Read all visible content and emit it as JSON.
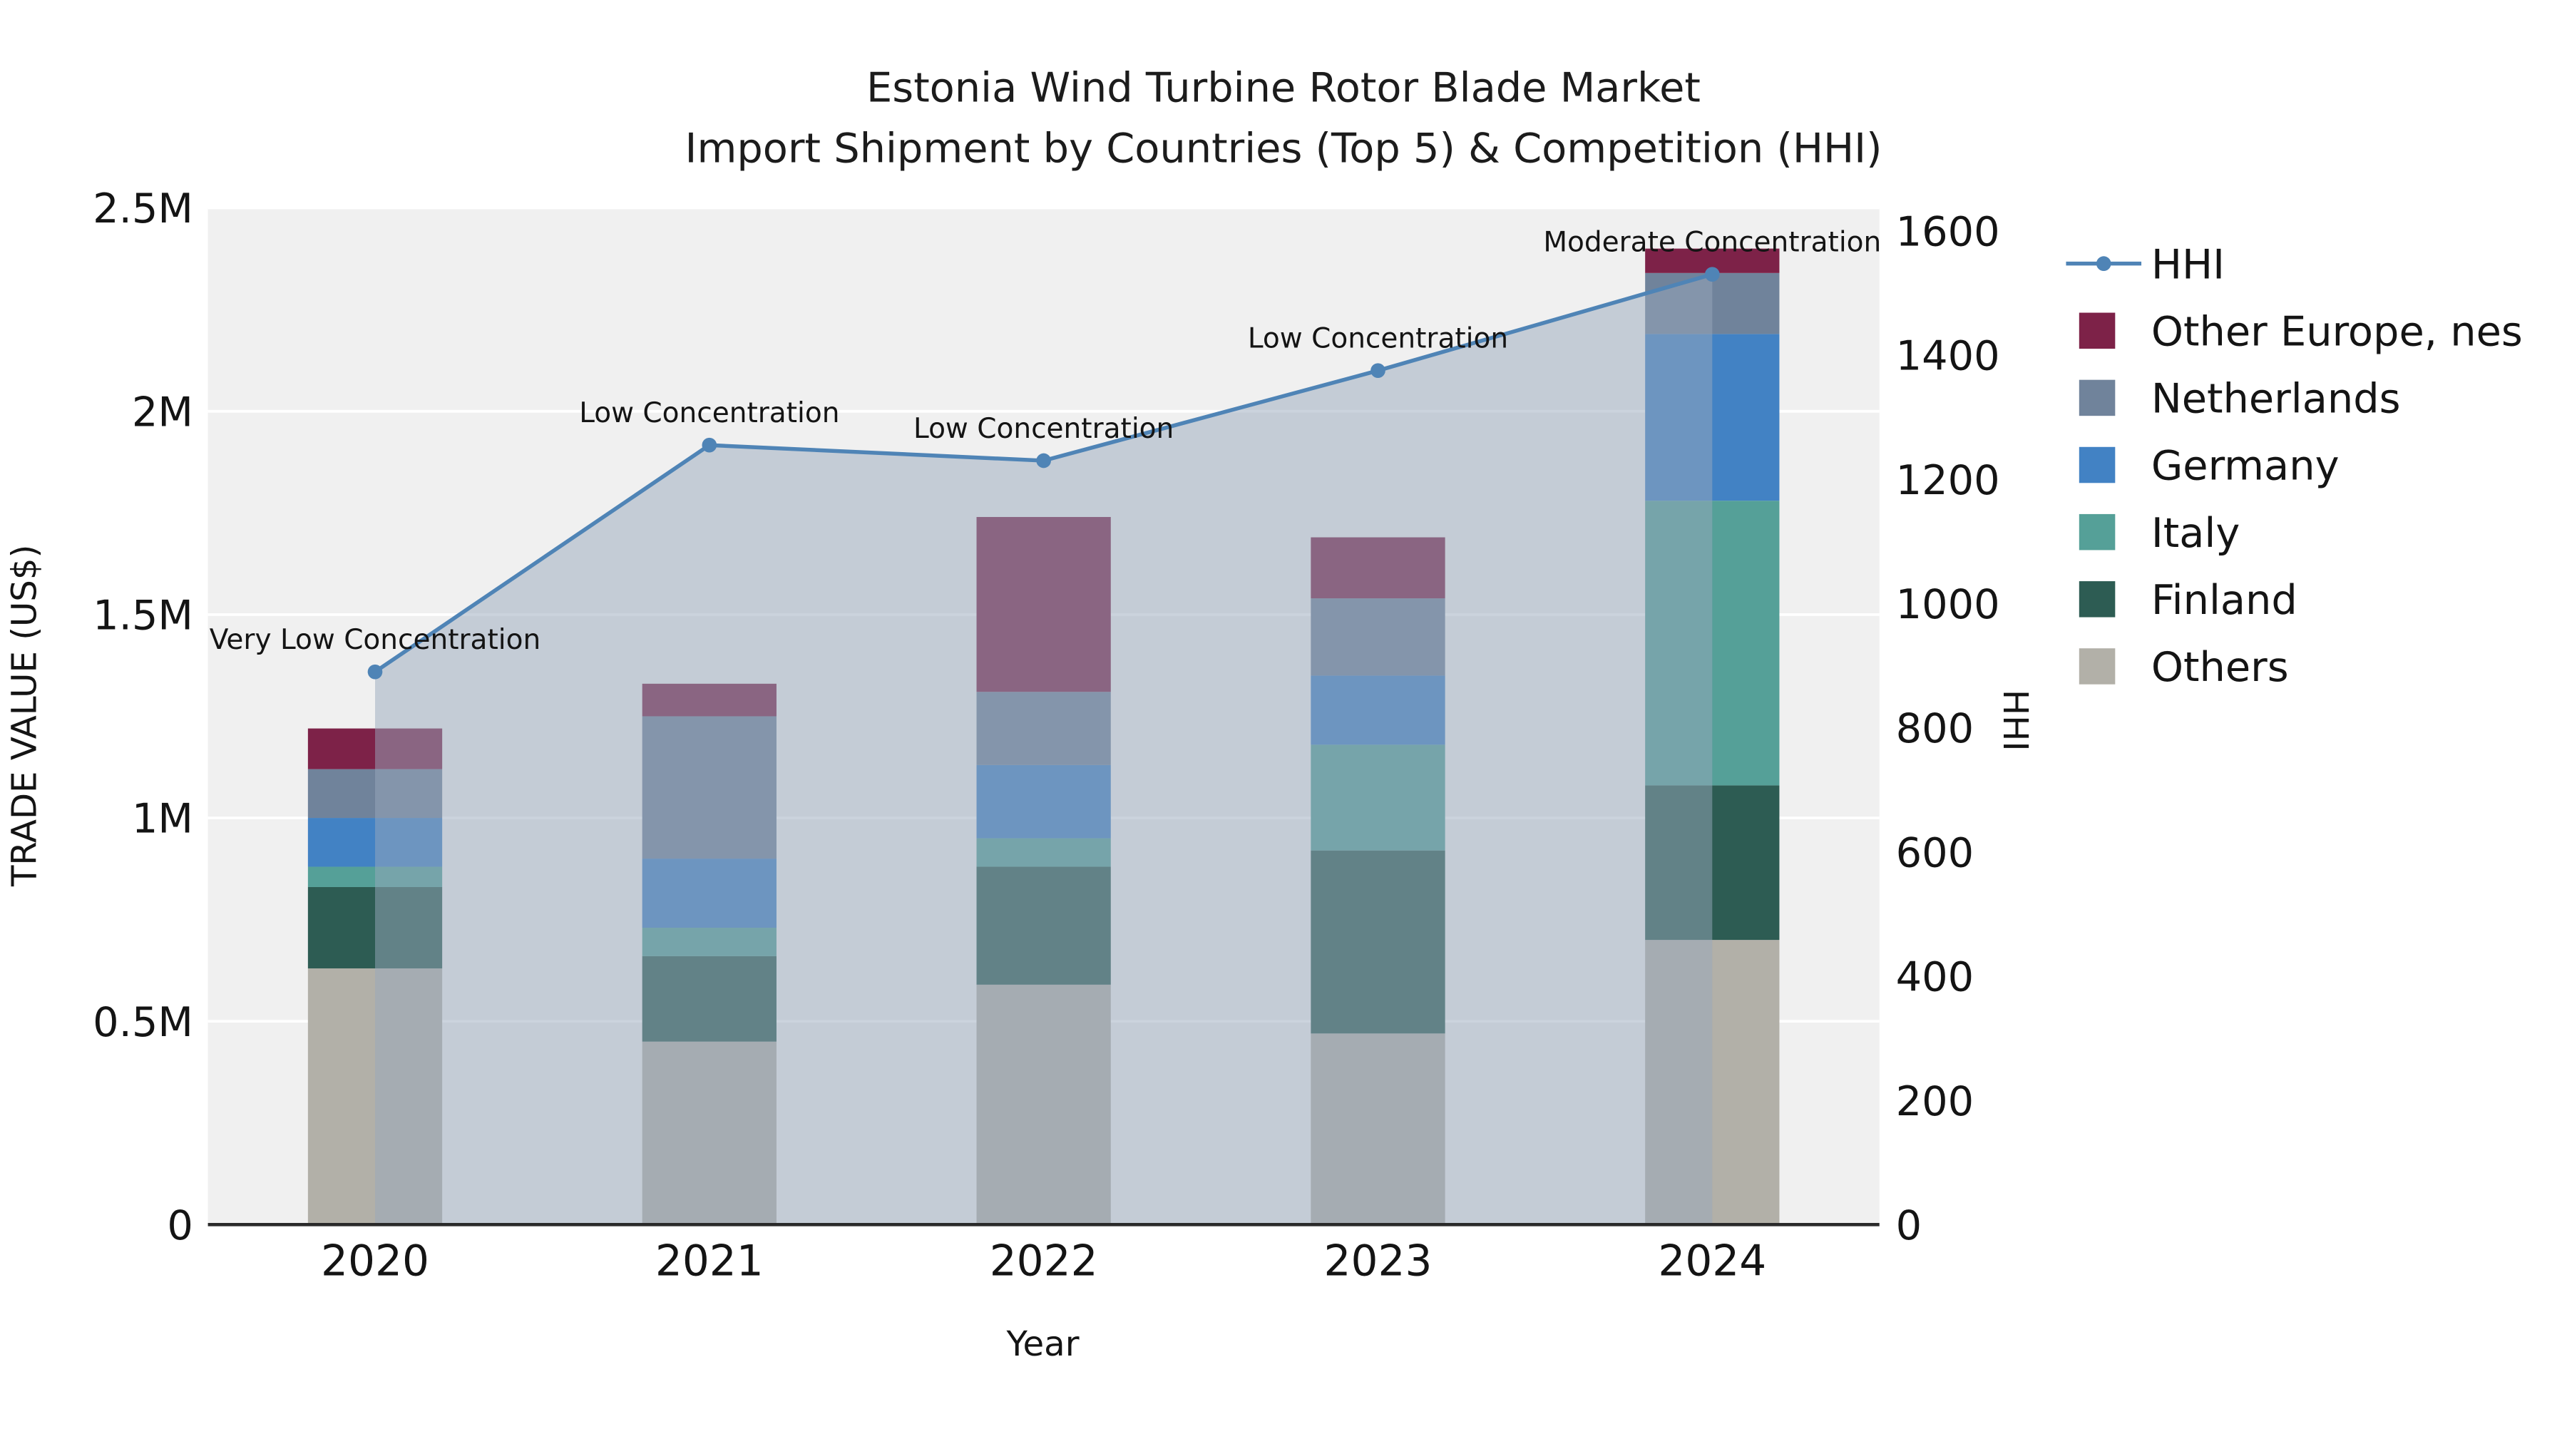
{
  "title": {
    "line1": "Estonia Wind Turbine Rotor Blade Market",
    "line2": "Import Shipment by Countries (Top 5) & Competition (HHI)"
  },
  "axes": {
    "x_label": "Year",
    "y_left_label": "TRADE VALUE (US$)",
    "y_right_label": "HHI",
    "y_left_ticks": [
      {
        "value": 0,
        "label": "0"
      },
      {
        "value": 500000,
        "label": "0.5M"
      },
      {
        "value": 1000000,
        "label": "1M"
      },
      {
        "value": 1500000,
        "label": "1.5M"
      },
      {
        "value": 2000000,
        "label": "2M"
      },
      {
        "value": 2500000,
        "label": "2.5M"
      }
    ],
    "y_right_ticks": [
      {
        "value": 0,
        "label": "0"
      },
      {
        "value": 200,
        "label": "200"
      },
      {
        "value": 400,
        "label": "400"
      },
      {
        "value": 600,
        "label": "600"
      },
      {
        "value": 800,
        "label": "800"
      },
      {
        "value": 1000,
        "label": "1000"
      },
      {
        "value": 1200,
        "label": "1200"
      },
      {
        "value": 1400,
        "label": "1400"
      },
      {
        "value": 1600,
        "label": "1600"
      }
    ]
  },
  "chart_data": {
    "type": "bar",
    "subtype": "stacked-bars-with-hhi-line-and-area",
    "title": "Estonia Wind Turbine Rotor Blade Market Import Shipment by Countries (Top 5) & Competition (HHI)",
    "xlabel": "Year",
    "ylabel_left": "TRADE VALUE (US$)",
    "ylabel_right": "HHI",
    "ylim_left": [
      0,
      2500000
    ],
    "ylim_right": [
      0,
      1600
    ],
    "grid": true,
    "legend_position": "right",
    "categories": [
      "2020",
      "2021",
      "2022",
      "2023",
      "2024"
    ],
    "series": [
      {
        "name": "Others",
        "color": "#b2b0a8",
        "values": [
          630000,
          450000,
          590000,
          470000,
          700000
        ]
      },
      {
        "name": "Finland",
        "color": "#2d5c53",
        "values": [
          200000,
          210000,
          290000,
          450000,
          380000
        ]
      },
      {
        "name": "Italy",
        "color": "#55a098",
        "values": [
          50000,
          70000,
          70000,
          260000,
          700000
        ]
      },
      {
        "name": "Germany",
        "color": "#4282c4",
        "values": [
          120000,
          170000,
          180000,
          170000,
          410000
        ]
      },
      {
        "name": "Netherlands",
        "color": "#70839b",
        "values": [
          120000,
          350000,
          180000,
          190000,
          150000
        ]
      },
      {
        "name": "Other Europe, nes",
        "color": "#7d2248",
        "values": [
          100000,
          80000,
          430000,
          150000,
          60000
        ]
      }
    ],
    "line": {
      "name": "HHI",
      "color": "#4f84b6",
      "area_fill": "rgba(151,168,188,0.5)",
      "values": [
        890,
        1255,
        1230,
        1375,
        1530
      ],
      "point_labels": [
        "Very Low Concentration",
        "Low Concentration",
        "Low Concentration",
        "Low Concentration",
        "Moderate Concentration"
      ]
    }
  },
  "legend": {
    "items": [
      {
        "label": "HHI",
        "type": "line",
        "color": "#4f84b6"
      },
      {
        "label": "Other Europe, nes",
        "type": "swatch",
        "color": "#7d2248"
      },
      {
        "label": "Netherlands",
        "type": "swatch",
        "color": "#70839b"
      },
      {
        "label": "Germany",
        "type": "swatch",
        "color": "#4282c4"
      },
      {
        "label": "Italy",
        "type": "swatch",
        "color": "#55a098"
      },
      {
        "label": "Finland",
        "type": "swatch",
        "color": "#2d5c53"
      },
      {
        "label": "Others",
        "type": "swatch",
        "color": "#b2b0a8"
      }
    ]
  }
}
